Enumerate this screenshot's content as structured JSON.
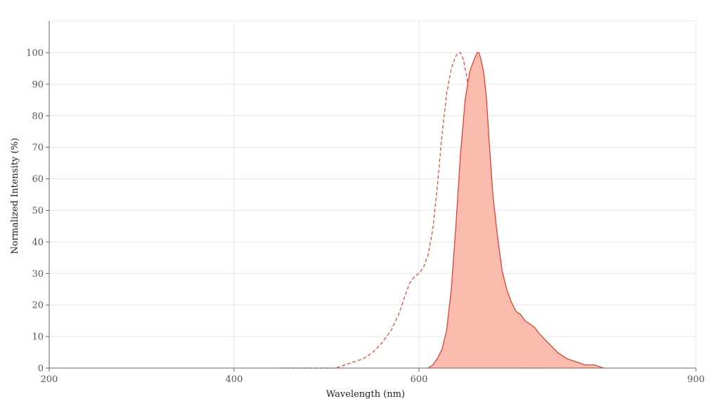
{
  "chart_data": {
    "type": "area",
    "xlabel": "Wavelength (nm)",
    "ylabel": "Normalized Intensity (%)",
    "xlim": [
      200,
      900
    ],
    "ylim": [
      0,
      110
    ],
    "x_ticks": [
      200,
      400,
      600,
      900
    ],
    "y_ticks": [
      0,
      10,
      20,
      30,
      40,
      50,
      60,
      70,
      80,
      90,
      100
    ],
    "x_tick_labels": [
      "200",
      "400",
      "600",
      "900"
    ],
    "y_tick_labels": [
      "0",
      "10",
      "20",
      "30",
      "40",
      "50",
      "60",
      "70",
      "80",
      "90",
      "100"
    ],
    "grid": true,
    "legend": "none",
    "colors": {
      "line": "#e8412a",
      "fill": "#fbbcb0",
      "grid": "#e6e6e6",
      "axis": "#666666"
    },
    "series": [
      {
        "style": "dashed-line",
        "x": [
          450,
          480,
          510,
          520,
          530,
          540,
          550,
          560,
          570,
          578,
          585,
          590,
          595,
          600,
          605,
          610,
          615,
          620,
          625,
          630,
          635,
          640,
          643,
          645,
          648,
          652,
          656,
          660,
          664,
          668,
          672,
          676,
          680,
          685,
          690,
          695,
          700,
          710,
          720,
          740
        ],
        "y": [
          0,
          0,
          0,
          1,
          2,
          3,
          5,
          8,
          12,
          17,
          23,
          27,
          29,
          30,
          32,
          36,
          44,
          58,
          74,
          87,
          95,
          99,
          100,
          100,
          98,
          92,
          80,
          63,
          45,
          30,
          20,
          14,
          9,
          5,
          3,
          2,
          1,
          0,
          0,
          0
        ]
      },
      {
        "style": "filled-area",
        "x": [
          610,
          615,
          620,
          625,
          630,
          635,
          640,
          645,
          650,
          655,
          660,
          663,
          665,
          667,
          670,
          673,
          676,
          680,
          685,
          690,
          695,
          700,
          705,
          710,
          715,
          720,
          725,
          730,
          740,
          750,
          760,
          770,
          780,
          790,
          800
        ],
        "y": [
          0,
          1,
          3,
          6,
          12,
          25,
          45,
          68,
          85,
          94,
          98,
          100,
          100,
          98,
          94,
          86,
          72,
          55,
          42,
          31,
          25,
          21,
          18,
          17,
          15,
          14,
          13,
          11,
          8,
          5,
          3,
          2,
          1,
          1,
          0
        ]
      }
    ]
  }
}
